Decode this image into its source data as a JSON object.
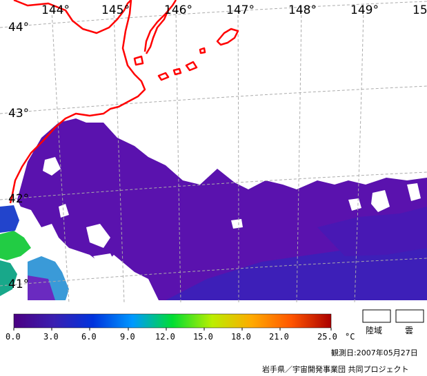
{
  "map": {
    "lon_labels": [
      "144°",
      "145°",
      "146°",
      "147°",
      "148°",
      "149°",
      "15"
    ],
    "lat_labels": [
      "44°",
      "43°",
      "42°",
      "41°"
    ]
  },
  "colorbar": {
    "ticks": [
      "0.0",
      "3.0",
      "6.0",
      "9.0",
      "12.0",
      "15.0",
      "18.0",
      "21.0",
      "25.0"
    ],
    "unit": "°C",
    "colors": [
      "#4b0082",
      "#3a1fb0",
      "#0033dd",
      "#0099ff",
      "#00dd33",
      "#bbee00",
      "#ffaa00",
      "#ff5500",
      "#aa0000"
    ]
  },
  "legend": {
    "land_label": "陸域",
    "cloud_label": "雲"
  },
  "observation_date": "観測日:2007年05月27日",
  "credit": "岩手県／宇宙開発事業団  共同プロジェクト",
  "colors": {
    "coastline": "#ff0000",
    "sst_main": "#5b12b0",
    "grid": "#aaaaaa"
  }
}
